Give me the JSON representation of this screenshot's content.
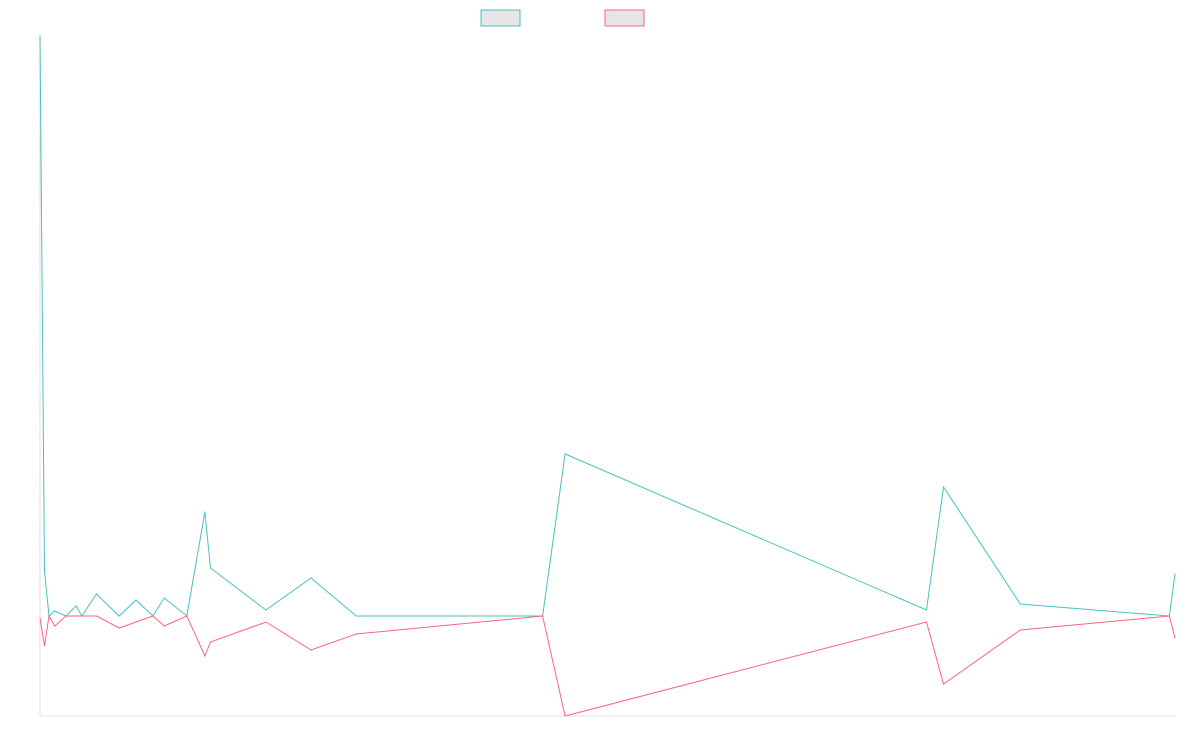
{
  "colors": {
    "series_a": "#4bc0c0",
    "series_b": "#ff6384",
    "legend_fill": "#e6e6e6",
    "axis": "#e0e0e0"
  },
  "chart_data": {
    "type": "line",
    "title": "",
    "xlabel": "",
    "ylabel": "",
    "grid": false,
    "legend": {
      "position": "top",
      "entries": [
        "",
        ""
      ]
    },
    "ylim": [
      -100,
      580
    ],
    "x": [
      0,
      4,
      8,
      13,
      23,
      32,
      37,
      50,
      70,
      85,
      100,
      110,
      130,
      146,
      151,
      200,
      240,
      280,
      445,
      465,
      785,
      800,
      868,
      1000,
      1005
    ],
    "series": [
      {
        "values": [
          580,
          45,
          0,
          5,
          0,
          10,
          0,
          22,
          0,
          16,
          0,
          18,
          0,
          104,
          48,
          6,
          38,
          0,
          0,
          162,
          6,
          129,
          12,
          0,
          42
        ]
      },
      {
        "values": [
          -2,
          -30,
          0,
          -10,
          0,
          0,
          0,
          0,
          -12,
          -6,
          0,
          -10,
          0,
          -40,
          -26,
          -6,
          -34,
          -18,
          0,
          -100,
          -6,
          -68,
          -14,
          0,
          -22
        ]
      }
    ]
  }
}
